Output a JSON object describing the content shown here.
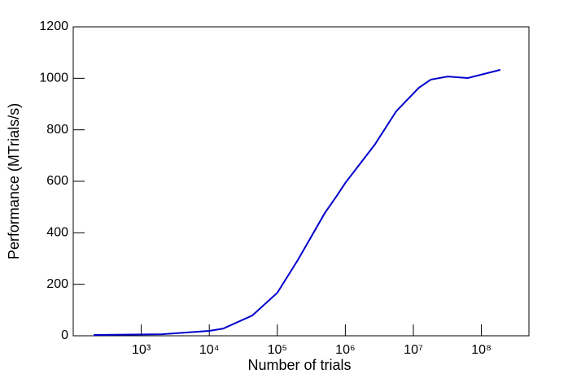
{
  "chart_data": {
    "type": "line",
    "log_x": true,
    "color": "#0000cc",
    "x_label": "Number of trials",
    "y_label": "Performance (MTrials/s)",
    "x": [
      200,
      2000,
      10000,
      16000,
      43000,
      100000,
      200000,
      500000,
      760000,
      1000000,
      2700000,
      5600000,
      12000000,
      18000000,
      32000000,
      63000000,
      190000000
    ],
    "values": [
      3,
      6,
      19,
      28,
      79,
      167,
      294,
      477,
      546,
      594,
      742,
      872,
      963,
      995,
      1007,
      1001,
      1033
    ],
    "xlim": [
      100,
      500000000
    ],
    "xticks": [
      {
        "value": 1000,
        "label": "10³"
      },
      {
        "value": 10000,
        "label": "10⁴"
      },
      {
        "value": 100000,
        "label": "10⁵"
      },
      {
        "value": 1000000,
        "label": "10⁶"
      },
      {
        "value": 10000000,
        "label": "10⁷"
      },
      {
        "value": 100000000,
        "label": "10⁸"
      }
    ],
    "ylim": [
      0,
      1200
    ],
    "yticks": [
      0,
      200,
      400,
      600,
      800,
      1000,
      1200
    ]
  }
}
